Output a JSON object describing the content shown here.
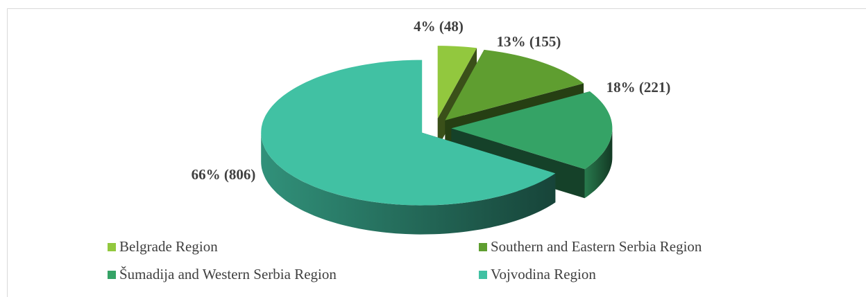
{
  "chart_data": {
    "type": "pie",
    "style": "3d-exploded",
    "categories": [
      "Belgrade Region",
      "Southern and Eastern Serbia Region",
      "Šumadija and Western Serbia Region",
      "Vojvodina Region"
    ],
    "values": [
      48,
      155,
      221,
      806
    ],
    "value_labels": [
      "4% (48)",
      "13% (155)",
      "18% (221)",
      "66% (806)"
    ],
    "colors": [
      "#92c83e",
      "#5f9e30",
      "#35a366",
      "#41c1a3"
    ],
    "legend": "bottom"
  }
}
